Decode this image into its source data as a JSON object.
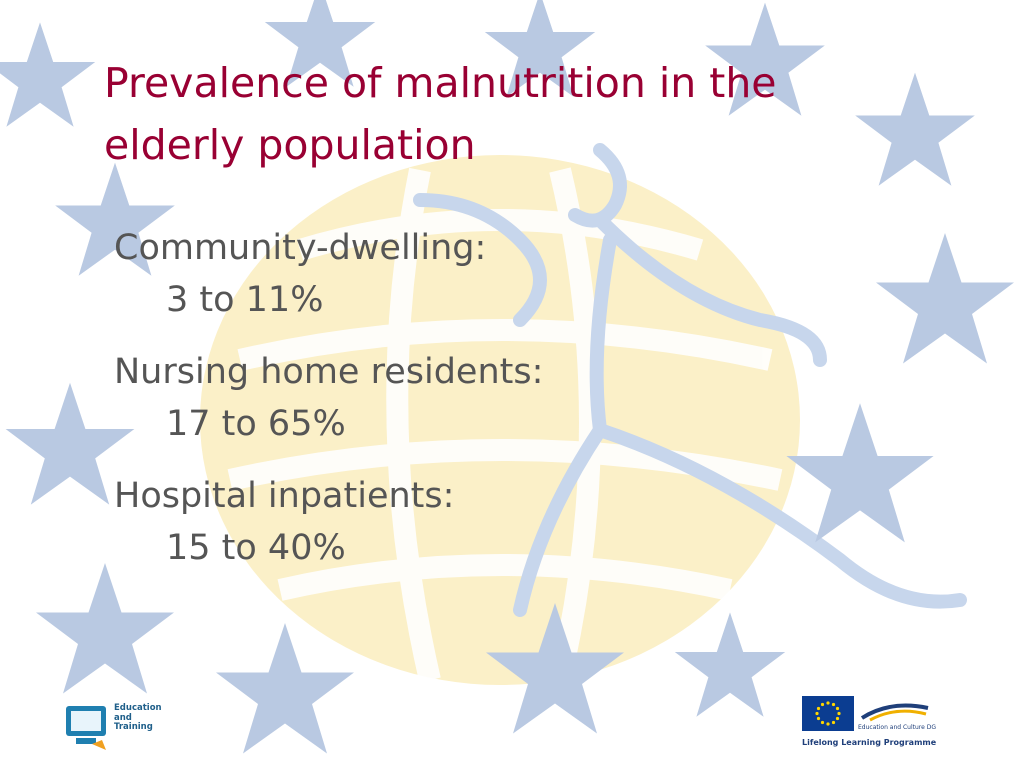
{
  "slide": {
    "title_lines": [
      "Prevalence of malnutrition in the",
      "elderly population"
    ],
    "items": [
      {
        "label": "Community-dwelling:",
        "value": "3 to 11%"
      },
      {
        "label": "Nursing home residents:",
        "value": "17 to 65%"
      },
      {
        "label": "Hospital inpatients:",
        "value": "15 to 40%"
      }
    ]
  },
  "logos": {
    "education_training": "Education\nand\nTraining",
    "eu_caption": "Education and Culture DG",
    "eu_programme": "Lifelong Learning Programme"
  },
  "colors": {
    "title": "#990033",
    "body_text": "#555555",
    "star": "#b9c9e2",
    "globe": "#fbf0c8",
    "figure": "#c7d6ec",
    "eu_blue": "#0b3d91"
  }
}
